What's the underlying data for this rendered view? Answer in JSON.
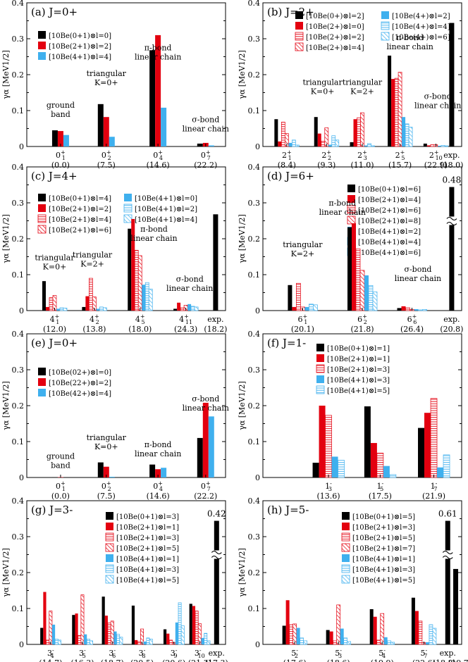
{
  "figure": {
    "ylabel": "γα [MeV1/2]",
    "yticks": [
      "0",
      "0.1",
      "0.2",
      "0.3",
      "0.4"
    ]
  },
  "colors": {
    "black": "#000000",
    "red": "#e3000f",
    "blue": "#3fb0ee"
  },
  "chart_data": [
    {
      "type": "bar",
      "panel": "(a)",
      "title": "(a) J=0+",
      "ylim": [
        0,
        0.4
      ],
      "legend": [
        "[10Be(0+1)⊗l=0]",
        "[10Be(2+1)⊗l=2]",
        "[10Be(4+1)⊗l=4]"
      ],
      "categories": [
        {
          "state": "0+1",
          "energy": "(0.0)"
        },
        {
          "state": "0+2",
          "energy": "(7.5)"
        },
        {
          "state": "0+4",
          "energy": "(14.6)"
        },
        {
          "state": "0+7",
          "energy": "(22.2)"
        }
      ],
      "series": [
        {
          "name": "[10Be(0+1)⊗l=0]",
          "values": [
            0.045,
            0.118,
            0.268,
            0.008
          ]
        },
        {
          "name": "[10Be(2+1)⊗l=2]",
          "values": [
            0.043,
            0.082,
            0.31,
            0.01
          ]
        },
        {
          "name": "[10Be(4+1)⊗l=4]",
          "values": [
            0.032,
            0.027,
            0.108,
            0.003
          ]
        }
      ],
      "annotations": [
        "ground band",
        "triangular K=0+",
        "π-bond linear chain",
        "σ-bond linear chain"
      ]
    },
    {
      "type": "bar",
      "panel": "(b)",
      "title": "(b) J=2+",
      "ylim": [
        0,
        0.4
      ],
      "legend": [
        "[10Be(0+)⊗l=2]",
        "[10Be(2+)⊗l=0]",
        "[10Be(2+)⊗l=2]",
        "[10Be(2+)⊗l=4]",
        "[10Be(4+)⊗l=2]",
        "[10Be(4+)⊗l=4]",
        "[10Be(4+)⊗l=6]"
      ],
      "categories": [
        {
          "state": "2+1",
          "energy": "(8.4)"
        },
        {
          "state": "2+2",
          "energy": "(9.3)"
        },
        {
          "state": "2+3",
          "energy": "(11.0)"
        },
        {
          "state": "2+5",
          "energy": "(15.7)"
        },
        {
          "state": "2+10",
          "energy": "(22.9)"
        }
      ],
      "series": [
        {
          "name": "[10Be(0+)⊗l=2]",
          "values": [
            0.076,
            0.082,
            0.012,
            0.253,
            0.008
          ]
        },
        {
          "name": "[10Be(2+)⊗l=0]",
          "values": [
            0.014,
            0.036,
            0.076,
            0.188,
            0.003
          ]
        },
        {
          "name": "[10Be(2+)⊗l=2]",
          "values": [
            0.068,
            0.015,
            0.08,
            0.19,
            0.005
          ]
        },
        {
          "name": "[10Be(2+)⊗l=4]",
          "values": [
            0.036,
            0.052,
            0.094,
            0.207,
            0.005
          ]
        },
        {
          "name": "[10Be(4+)⊗l=2]",
          "values": [
            0.01,
            0.005,
            0.003,
            0.082,
            0.002
          ]
        },
        {
          "name": "[10Be(4+)⊗l=4]",
          "values": [
            0.018,
            0.03,
            0.008,
            0.063,
            0.003
          ]
        },
        {
          "name": "[10Be(4+)⊗l=6]",
          "values": [
            0.004,
            0.018,
            0.002,
            0.054,
            0.002
          ]
        }
      ],
      "exp": {
        "label": "exp.",
        "energy": "(18.0)",
        "value": 0.36
      },
      "annotations": [
        "triangular K=0+",
        "triangular K=2+",
        "π-bond linear chain",
        "σ-bond linear chain"
      ]
    },
    {
      "type": "bar",
      "panel": "(c)",
      "title": "(c) J=4+",
      "ylim": [
        0,
        0.4
      ],
      "legend": [
        "[10Be(0+1)⊗l=4]",
        "[10Be(2+1)⊗l=2]",
        "[10Be(2+1)⊗l=4]",
        "[10Be(2+1)⊗l=6]",
        "[10Be(4+1)⊗l=0]",
        "[10Be(4+1)⊗l=2]",
        "[10Be(4+1)⊗l=4]"
      ],
      "categories": [
        {
          "state": "4+1",
          "energy": "(12.0)"
        },
        {
          "state": "4+2",
          "energy": "(13.8)"
        },
        {
          "state": "4+5",
          "energy": "(18.0)"
        },
        {
          "state": "4+11",
          "energy": "(24.3)"
        }
      ],
      "series": [
        {
          "name": "[10Be(0+1)⊗l=4]",
          "values": [
            0.082,
            0.01,
            0.228,
            0.005
          ]
        },
        {
          "name": "[10Be(2+1)⊗l=2]",
          "values": [
            0.01,
            0.04,
            0.255,
            0.022
          ]
        },
        {
          "name": "[10Be(2+1)⊗l=4]",
          "values": [
            0.036,
            0.09,
            0.168,
            0.008
          ]
        },
        {
          "name": "[10Be(2+1)⊗l=6]",
          "values": [
            0.042,
            0.038,
            0.153,
            0.015
          ]
        },
        {
          "name": "[10Be(4+1)⊗l=0]",
          "values": [
            0.005,
            0.005,
            0.072,
            0.018
          ]
        },
        {
          "name": "[10Be(4+1)⊗l=2]",
          "values": [
            0.008,
            0.01,
            0.078,
            0.012
          ]
        },
        {
          "name": "[10Be(4+1)⊗l=4]",
          "values": [
            0.007,
            0.008,
            0.06,
            0.01
          ]
        }
      ],
      "exp": {
        "label": "exp.",
        "energy": "(18.2)",
        "value": 0.268
      },
      "annotations": [
        "triangular K=0+",
        "triangular K=2+",
        "π-bond linear chain",
        "σ-bond linear chain"
      ]
    },
    {
      "type": "bar",
      "panel": "(d)",
      "title": "(d) J=6+",
      "ylim": [
        0,
        0.4
      ],
      "legend": [
        "[10Be(0+1)⊗l=6]",
        "[10Be(2+1)⊗l=4]",
        "[10Be(2+1)⊗l=6]",
        "[10Be(2+1)⊗l=8]",
        "[10Be(4+1)⊗l=2]",
        "[10Be(4+1)⊗l=4]",
        "[10Be(4+1)⊗l=6]"
      ],
      "categories": [
        {
          "state": "6+1",
          "energy": "(20.1)"
        },
        {
          "state": "6+2",
          "energy": "(21.8)"
        },
        {
          "state": "6+6",
          "energy": "(26.4)"
        }
      ],
      "series": [
        {
          "name": "[10Be(0+1)⊗l=6]",
          "values": [
            0.071,
            0.232,
            0.007
          ]
        },
        {
          "name": "[10Be(2+1)⊗l=4]",
          "values": [
            0.01,
            0.243,
            0.012
          ]
        },
        {
          "name": "[10Be(2+1)⊗l=6]",
          "values": [
            0.076,
            0.172,
            0.008
          ]
        },
        {
          "name": "[10Be(2+1)⊗l=8]",
          "values": [
            0.01,
            0.112,
            0.003
          ]
        },
        {
          "name": "[10Be(4+1)⊗l=2]",
          "values": [
            0.01,
            0.098,
            0.004
          ]
        },
        {
          "name": "[10Be(4+1)⊗l=4]",
          "values": [
            0.018,
            0.07,
            0.002
          ]
        },
        {
          "name": "[10Be(4+1)⊗l=6]",
          "values": [
            0.016,
            0.052,
            0.003
          ]
        }
      ],
      "exp": {
        "label": "exp.",
        "energy": "(20.8)",
        "value": 0.48,
        "value_label": "0.48"
      },
      "annotations": [
        "triangular K=2+",
        "π-bond linear chain",
        "σ-bond linear chain"
      ]
    },
    {
      "type": "bar",
      "panel": "(e)",
      "title": "(e) J=0+",
      "ylim": [
        0,
        0.4
      ],
      "legend": [
        "[10Be(02+)⊗l=0]",
        "[10Be(22+)⊗l=2]",
        "[10Be(42+)⊗l=4]"
      ],
      "categories": [
        {
          "state": "0+1",
          "energy": "(0.0)"
        },
        {
          "state": "0+2",
          "energy": "(7.5)"
        },
        {
          "state": "0+4",
          "energy": "(14.6)"
        },
        {
          "state": "0+7",
          "energy": "(22.2)"
        }
      ],
      "series": [
        {
          "name": "[10Be(02+)⊗l=0]",
          "values": [
            0.001,
            0.042,
            0.036,
            0.11
          ]
        },
        {
          "name": "[10Be(22+)⊗l=2]",
          "values": [
            0.001,
            0.03,
            0.023,
            0.208
          ]
        },
        {
          "name": "[10Be(42+)⊗l=4]",
          "values": [
            0.0,
            0.002,
            0.027,
            0.17
          ]
        }
      ],
      "annotations": [
        "ground band",
        "triangular K=0+",
        "π-bond linear chain",
        "σ-bond linear chain"
      ]
    },
    {
      "type": "bar",
      "panel": "(f)",
      "title": "(f) J=1-",
      "ylim": [
        0,
        0.4
      ],
      "legend": [
        "[10Be(0+1)⊗l=1]",
        "[10Be(2+1)⊗l=1]",
        "[10Be(2+1)⊗l=3]",
        "[10Be(4+1)⊗l=3]",
        "[10Be(4+1)⊗l=5]"
      ],
      "categories": [
        {
          "state": "1-3",
          "energy": "(13.6)"
        },
        {
          "state": "1-5",
          "energy": "(17.5)"
        },
        {
          "state": "1-7",
          "energy": "(21.9)"
        }
      ],
      "series": [
        {
          "name": "[10Be(0+1)⊗l=1]",
          "values": [
            0.041,
            0.198,
            0.138
          ]
        },
        {
          "name": "[10Be(2+1)⊗l=1]",
          "values": [
            0.2,
            0.096,
            0.18
          ]
        },
        {
          "name": "[10Be(2+1)⊗l=3]",
          "values": [
            0.173,
            0.068,
            0.22
          ]
        },
        {
          "name": "[10Be(4+1)⊗l=3]",
          "values": [
            0.058,
            0.032,
            0.028
          ]
        },
        {
          "name": "[10Be(4+1)⊗l=5]",
          "values": [
            0.048,
            0.008,
            0.063
          ]
        }
      ]
    },
    {
      "type": "bar",
      "panel": "(g)",
      "title": "(g) J=3-",
      "ylim": [
        0,
        0.4
      ],
      "legend": [
        "[10Be(0+1)⊗l=3]",
        "[10Be(2+1)⊗l=1]",
        "[10Be(2+1)⊗l=3]",
        "[10Be(2+1)⊗l=5]",
        "[10Be(4+1)⊗l=1]",
        "[10Be(4+1)⊗l=3]",
        "[10Be(4+1)⊗l=5]"
      ],
      "categories": [
        {
          "state": "3-4",
          "energy": "(14.7)"
        },
        {
          "state": "3-5",
          "energy": "(16.3)"
        },
        {
          "state": "3-6",
          "energy": "(18.7)"
        },
        {
          "state": "3-8",
          "energy": "(20.5)"
        },
        {
          "state": "3-9",
          "energy": "(20.6)"
        },
        {
          "state": "3-10",
          "energy": "(21.3)"
        }
      ],
      "series": [
        {
          "name": "[10Be(0+1)⊗l=3]",
          "values": [
            0.046,
            0.082,
            0.133,
            0.108,
            0.042,
            0.113
          ]
        },
        {
          "name": "[10Be(2+1)⊗l=1]",
          "values": [
            0.146,
            0.086,
            0.08,
            0.012,
            0.03,
            0.107
          ]
        },
        {
          "name": "[10Be(2+1)⊗l=3]",
          "values": [
            0.012,
            0.025,
            0.06,
            0.008,
            0.012,
            0.093
          ]
        },
        {
          "name": "[10Be(2+1)⊗l=5]",
          "values": [
            0.093,
            0.138,
            0.065,
            0.043,
            0.005,
            0.058
          ]
        },
        {
          "name": "[10Be(4+1)⊗l=1]",
          "values": [
            0.055,
            0.028,
            0.036,
            0.008,
            0.061,
            0.018
          ]
        },
        {
          "name": "[10Be(4+1)⊗l=3]",
          "values": [
            0.015,
            0.015,
            0.028,
            0.018,
            0.116,
            0.031
          ]
        },
        {
          "name": "[10Be(4+1)⊗l=5]",
          "values": [
            0.012,
            0.01,
            0.02,
            0.015,
            0.052,
            0.01
          ]
        }
      ],
      "exp": {
        "label": "exp.",
        "energy": "(17.3)",
        "value": 0.42,
        "value_label": "0.42"
      }
    },
    {
      "type": "bar",
      "panel": "(h)",
      "title": "(h) J=5-",
      "ylim": [
        0,
        0.4
      ],
      "legend": [
        "[10Be(0+1)⊗l=5]",
        "[10Be(2+1)⊗l=3]",
        "[10Be(2+1)⊗l=5]",
        "[10Be(2+1)⊗l=7]",
        "[10Be(4+1)⊗l=1]",
        "[10Be(4+1)⊗l=3]",
        "[10Be(4+1)⊗l=5]"
      ],
      "categories": [
        {
          "state": "5-2",
          "energy": "(17.6)"
        },
        {
          "state": "5-3",
          "energy": "(18.6)"
        },
        {
          "state": "5-4",
          "energy": "(19.9)"
        },
        {
          "state": "5-7",
          "energy": "(22.6)"
        }
      ],
      "series": [
        {
          "name": "[10Be(0+1)⊗l=5]",
          "values": [
            0.052,
            0.04,
            0.098,
            0.13
          ]
        },
        {
          "name": "[10Be(2+1)⊗l=3]",
          "values": [
            0.123,
            0.036,
            0.077,
            0.093
          ]
        },
        {
          "name": "[10Be(2+1)⊗l=5]",
          "values": [
            0.055,
            0.01,
            0.012,
            0.065
          ]
        },
        {
          "name": "[10Be(2+1)⊗l=7]",
          "values": [
            0.057,
            0.11,
            0.086,
            0.005
          ]
        },
        {
          "name": "[10Be(4+1)⊗l=1]",
          "values": [
            0.046,
            0.044,
            0.02,
            0.006
          ]
        },
        {
          "name": "[10Be(4+1)⊗l=3]",
          "values": [
            0.018,
            0.018,
            0.01,
            0.055
          ]
        },
        {
          "name": "[10Be(4+1)⊗l=5]",
          "values": [
            0.01,
            0.008,
            0.006,
            0.045
          ]
        }
      ],
      "exp": [
        {
          "label": "exp.",
          "energy": "(18.8)",
          "value": 0.61,
          "value_label": "0.61"
        },
        {
          "label": "",
          "energy": "(19.7)",
          "value": 0.21
        }
      ]
    }
  ]
}
